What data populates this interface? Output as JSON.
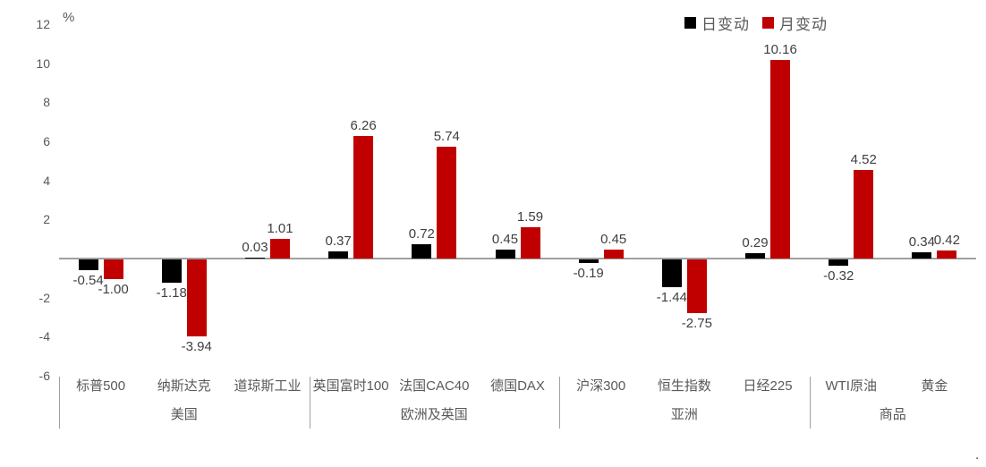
{
  "chart_data": {
    "type": "bar",
    "title": "",
    "unit_label": "%",
    "categories": [
      "标普500",
      "纳斯达克",
      "道琼斯工业",
      "英国富时100",
      "法国CAC40",
      "德国DAX",
      "沪深300",
      "恒生指数",
      "日经225",
      "WTI原油",
      "黄金"
    ],
    "groups": [
      {
        "label": "美国",
        "span": 3
      },
      {
        "label": "欧洲及英国",
        "span": 3
      },
      {
        "label": "亚洲",
        "span": 3
      },
      {
        "label": "商品",
        "span": 2
      }
    ],
    "series": [
      {
        "name": "日变动",
        "color": "#000000",
        "values": [
          -0.54,
          -1.18,
          0.03,
          0.37,
          0.72,
          0.45,
          -0.19,
          -1.44,
          0.29,
          -0.32,
          0.34
        ],
        "labels": [
          "-0.54",
          "-1.18",
          "0.03",
          "0.37",
          "0.72",
          "0.45",
          "-0.19",
          "-1.44",
          "0.29",
          "-0.32",
          "0.34"
        ]
      },
      {
        "name": "月变动",
        "color": "#c00000",
        "values": [
          -1.0,
          -3.94,
          1.01,
          6.26,
          5.74,
          1.59,
          0.45,
          -2.75,
          10.16,
          4.52,
          0.42
        ],
        "labels": [
          "-1.00",
          "-3.94",
          "1.01",
          "6.26",
          "5.74",
          "1.59",
          "0.45",
          "-2.75",
          "10.16",
          "4.52",
          "0.42"
        ]
      }
    ],
    "ylim": [
      -6,
      12
    ],
    "yticks": [
      "12",
      "10",
      "8",
      "6",
      "4",
      "2",
      "-2",
      "-4",
      "-6"
    ],
    "ytick_values": [
      12,
      10,
      8,
      6,
      4,
      2,
      -2,
      -4,
      -6
    ],
    "grid": false,
    "legend_position": "top-right",
    "axis_line_color": "#a0a0a0",
    "data_label_color": "#404040",
    "tick_label_color": "#595959"
  },
  "footer": {
    "period_mark": "."
  }
}
